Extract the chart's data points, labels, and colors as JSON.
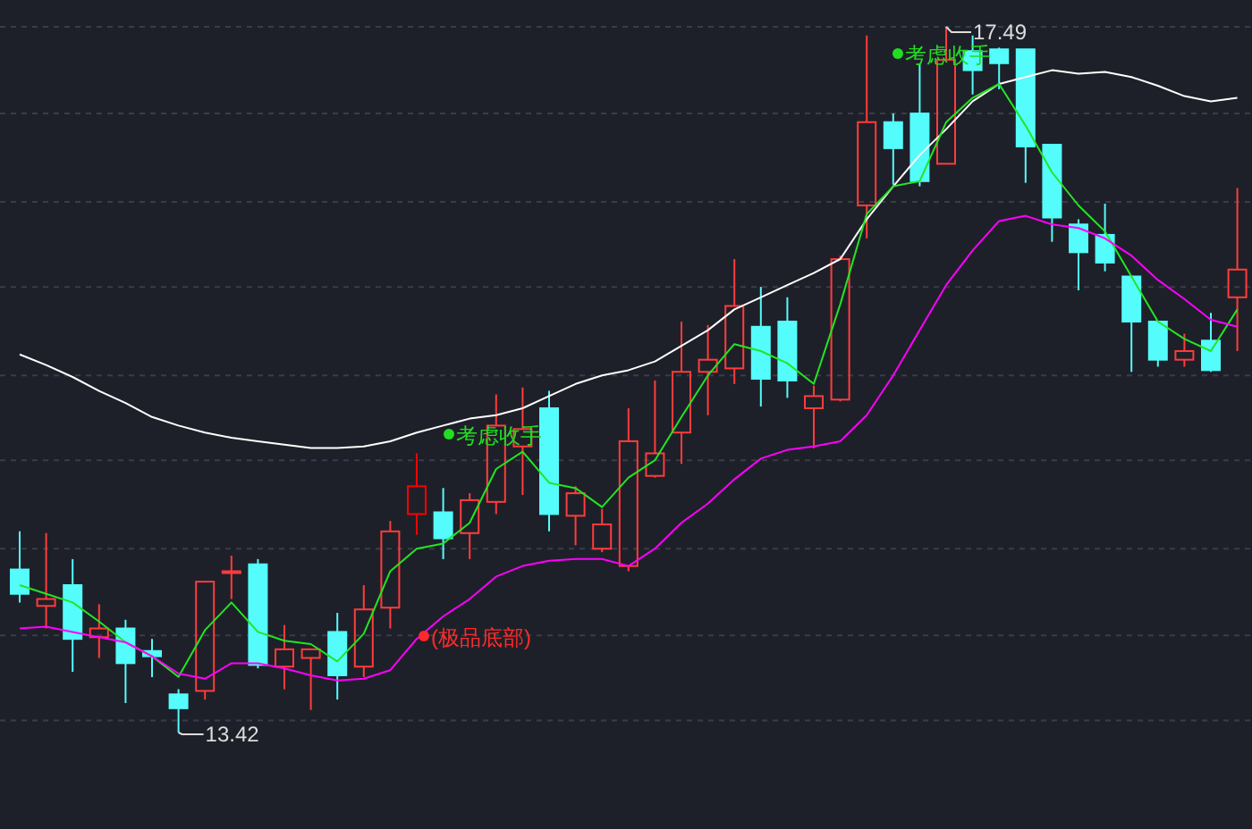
{
  "chart_data": {
    "type": "candlestick",
    "categories": [
      null,
      null,
      null,
      null,
      null,
      null,
      null,
      null,
      null,
      null,
      null,
      null,
      null,
      null,
      null,
      null,
      null,
      null,
      null,
      null,
      null,
      null,
      null,
      null,
      null,
      null,
      null,
      null,
      null,
      null,
      null,
      null,
      null,
      null,
      null,
      null,
      null,
      null,
      null,
      null,
      null,
      null,
      null,
      null,
      null,
      null,
      null
    ],
    "ohlc": [
      [
        14.36,
        14.58,
        14.17,
        14.22
      ],
      [
        14.15,
        14.57,
        14.02,
        14.19
      ],
      [
        14.27,
        14.42,
        13.77,
        13.96
      ],
      [
        13.97,
        14.16,
        13.85,
        14.02
      ],
      [
        14.02,
        14.07,
        13.59,
        13.82
      ],
      [
        13.89,
        13.96,
        13.74,
        13.86
      ],
      [
        13.64,
        13.67,
        13.42,
        13.56
      ],
      [
        13.66,
        14.29,
        13.61,
        14.29
      ],
      [
        14.34,
        14.44,
        14.19,
        14.35
      ],
      [
        14.39,
        14.42,
        13.79,
        13.81
      ],
      [
        13.8,
        14.04,
        13.67,
        13.9
      ],
      [
        13.85,
        13.9,
        13.55,
        13.9
      ],
      [
        14.0,
        14.11,
        13.61,
        13.75
      ],
      [
        13.8,
        14.27,
        13.74,
        14.13
      ],
      [
        14.14,
        14.64,
        14.02,
        14.58
      ],
      [
        14.68,
        15.03,
        14.56,
        14.84
      ],
      [
        14.69,
        14.83,
        14.42,
        14.54
      ],
      [
        14.57,
        14.8,
        14.42,
        14.76
      ],
      [
        14.75,
        15.37,
        14.68,
        15.19
      ],
      [
        15.07,
        15.41,
        14.79,
        15.17
      ],
      [
        15.29,
        15.39,
        14.58,
        14.68
      ],
      [
        14.67,
        14.84,
        14.5,
        14.8
      ],
      [
        14.48,
        14.71,
        14.46,
        14.62
      ],
      [
        14.38,
        15.29,
        14.35,
        15.1
      ],
      [
        14.9,
        15.45,
        14.89,
        15.03
      ],
      [
        15.15,
        15.79,
        14.97,
        15.5
      ],
      [
        15.5,
        15.77,
        15.25,
        15.57
      ],
      [
        15.52,
        16.15,
        15.43,
        15.88
      ],
      [
        15.76,
        15.99,
        15.3,
        15.46
      ],
      [
        15.79,
        15.93,
        15.35,
        15.45
      ],
      [
        15.29,
        15.42,
        15.06,
        15.36
      ],
      [
        15.34,
        16.17,
        15.33,
        16.15
      ],
      [
        16.46,
        17.44,
        16.27,
        16.94
      ],
      [
        16.94,
        16.99,
        16.58,
        16.79
      ],
      [
        16.99,
        17.28,
        16.57,
        16.6
      ],
      [
        16.7,
        17.49,
        16.7,
        17.3
      ],
      [
        17.35,
        17.44,
        17.1,
        17.24
      ],
      [
        17.36,
        17.37,
        17.13,
        17.28
      ],
      [
        17.36,
        17.36,
        16.59,
        16.8
      ],
      [
        16.81,
        16.81,
        16.25,
        16.39
      ],
      [
        16.35,
        16.38,
        15.97,
        16.19
      ],
      [
        16.29,
        16.47,
        16.08,
        16.13
      ],
      [
        16.05,
        16.05,
        15.5,
        15.79
      ],
      [
        15.79,
        15.79,
        15.53,
        15.57
      ],
      [
        15.57,
        15.72,
        15.53,
        15.62
      ],
      [
        15.68,
        15.84,
        15.5,
        15.51
      ],
      [
        15.93,
        16.56,
        15.62,
        16.09
      ]
    ],
    "colors": [
      "#54fcfc",
      "#ff3c3c",
      "#54fcfc",
      "#ff3c3c",
      "#54fcfc",
      "#54fcfc",
      "#54fcfc",
      "#ff3c3c",
      "#ff3c3c",
      "#54fcfc",
      "#ff3c3c",
      "#ff3c3c",
      "#54fcfc",
      "#ff3c3c",
      "#ff3c3c",
      "#ff0000",
      "#54fcfc",
      "#ff3c3c",
      "#ff3c3c",
      "#ff3c3c",
      "#54fcfc",
      "#ff3c3c",
      "#ff3c3c",
      "#ff3c3c",
      "#ff3c3c",
      "#ff3c3c",
      "#ff3c3c",
      "#ff3c3c",
      "#54fcfc",
      "#54fcfc",
      "#ff3c3c",
      "#ff3c3c",
      "#ff3c3c",
      "#54fcfc",
      "#54fcfc",
      "#ff3c3c",
      "#54fcfc",
      "#54fcfc",
      "#54fcfc",
      "#54fcfc",
      "#54fcfc",
      "#54fcfc",
      "#54fcfc",
      "#54fcfc",
      "#ff3c3c",
      "#54fcfc",
      "#ff3c3c"
    ],
    "series": [
      {
        "type": "line",
        "color": "#ffffff",
        "values": [
          15.6,
          15.54,
          15.47,
          15.39,
          15.32,
          15.24,
          15.19,
          15.15,
          15.12,
          15.1,
          15.08,
          15.06,
          15.06,
          15.07,
          15.1,
          15.15,
          15.19,
          15.23,
          15.25,
          15.29,
          15.36,
          15.43,
          15.48,
          15.51,
          15.56,
          15.65,
          15.74,
          15.86,
          15.93,
          16.0,
          16.07,
          16.15,
          16.38,
          16.57,
          16.75,
          16.9,
          17.06,
          17.16,
          17.2,
          17.24,
          17.22,
          17.23,
          17.2,
          17.15,
          17.09,
          17.06,
          17.08
        ]
      },
      {
        "type": "line",
        "color": "#22e622",
        "values": [
          14.27,
          14.22,
          14.17,
          14.06,
          13.94,
          13.86,
          13.74,
          14.01,
          14.17,
          14.0,
          13.95,
          13.93,
          13.83,
          13.99,
          14.35,
          14.48,
          14.51,
          14.63,
          14.94,
          15.04,
          14.86,
          14.83,
          14.72,
          14.89,
          14.99,
          15.24,
          15.48,
          15.66,
          15.62,
          15.55,
          15.43,
          15.89,
          16.41,
          16.57,
          16.6,
          16.94,
          17.08,
          17.16,
          16.92,
          16.65,
          16.46,
          16.31,
          16.05,
          15.79,
          15.69,
          15.62,
          15.86
        ]
      },
      {
        "type": "line",
        "color": "#ff00ff",
        "values": [
          14.02,
          14.03,
          14.0,
          13.97,
          13.94,
          13.86,
          13.76,
          13.73,
          13.82,
          13.82,
          13.79,
          13.75,
          13.72,
          13.73,
          13.78,
          13.96,
          14.09,
          14.19,
          14.32,
          14.38,
          14.41,
          14.42,
          14.42,
          14.38,
          14.48,
          14.63,
          14.74,
          14.88,
          15.0,
          15.05,
          15.07,
          15.1,
          15.25,
          15.48,
          15.74,
          16.0,
          16.2,
          16.37,
          16.4,
          16.35,
          16.33,
          16.27,
          16.17,
          16.03,
          15.92,
          15.8,
          15.76
        ]
      }
    ],
    "yticks": [
      {
        "value": 13.49,
        "label": null
      },
      {
        "value": 13.98,
        "label": null
      },
      {
        "value": 14.48,
        "label": null
      },
      {
        "value": 14.99,
        "label": null
      },
      {
        "value": 15.48,
        "label": null
      },
      {
        "value": 15.99,
        "label": null
      },
      {
        "value": 16.48,
        "label": null
      },
      {
        "value": 16.99,
        "label": null
      },
      {
        "value": 17.49,
        "label": null
      }
    ],
    "grid": "y",
    "annotations": [
      "17.49",
      "13.42",
      "考虑收手",
      "考虑收手",
      "(极品底部)"
    ]
  }
}
